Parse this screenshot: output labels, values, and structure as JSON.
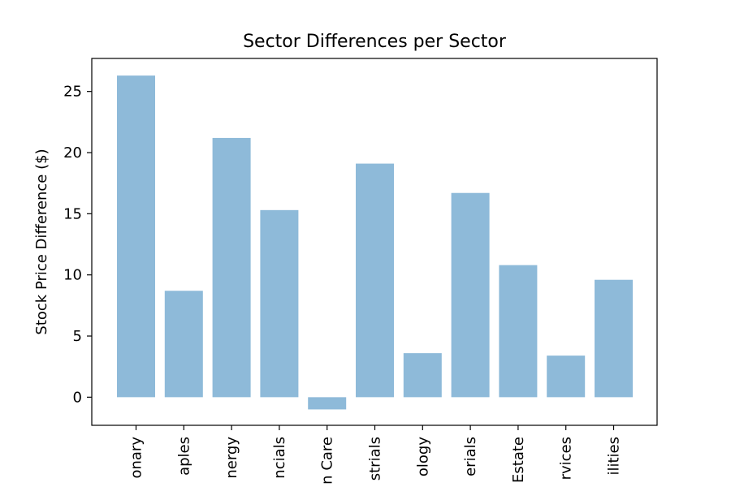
{
  "chart_data": {
    "type": "bar",
    "title": "Sector Differences per Sector",
    "xlabel": "",
    "ylabel": "Stock Price Difference ($)",
    "categories": [
      "onary",
      "aples",
      "nergy",
      "ncials",
      "n Care",
      "strials",
      "ology",
      "erials",
      "Estate",
      "rvices",
      "ilities"
    ],
    "values": [
      26.3,
      8.7,
      21.2,
      15.3,
      -1.0,
      19.1,
      3.6,
      16.7,
      10.8,
      3.4,
      9.6
    ],
    "ylim": [
      -2.3,
      27.7
    ],
    "yticks": [
      0,
      5,
      10,
      15,
      20,
      25
    ],
    "bar_color": "#8ebad9",
    "grid": false,
    "legend": "none"
  }
}
